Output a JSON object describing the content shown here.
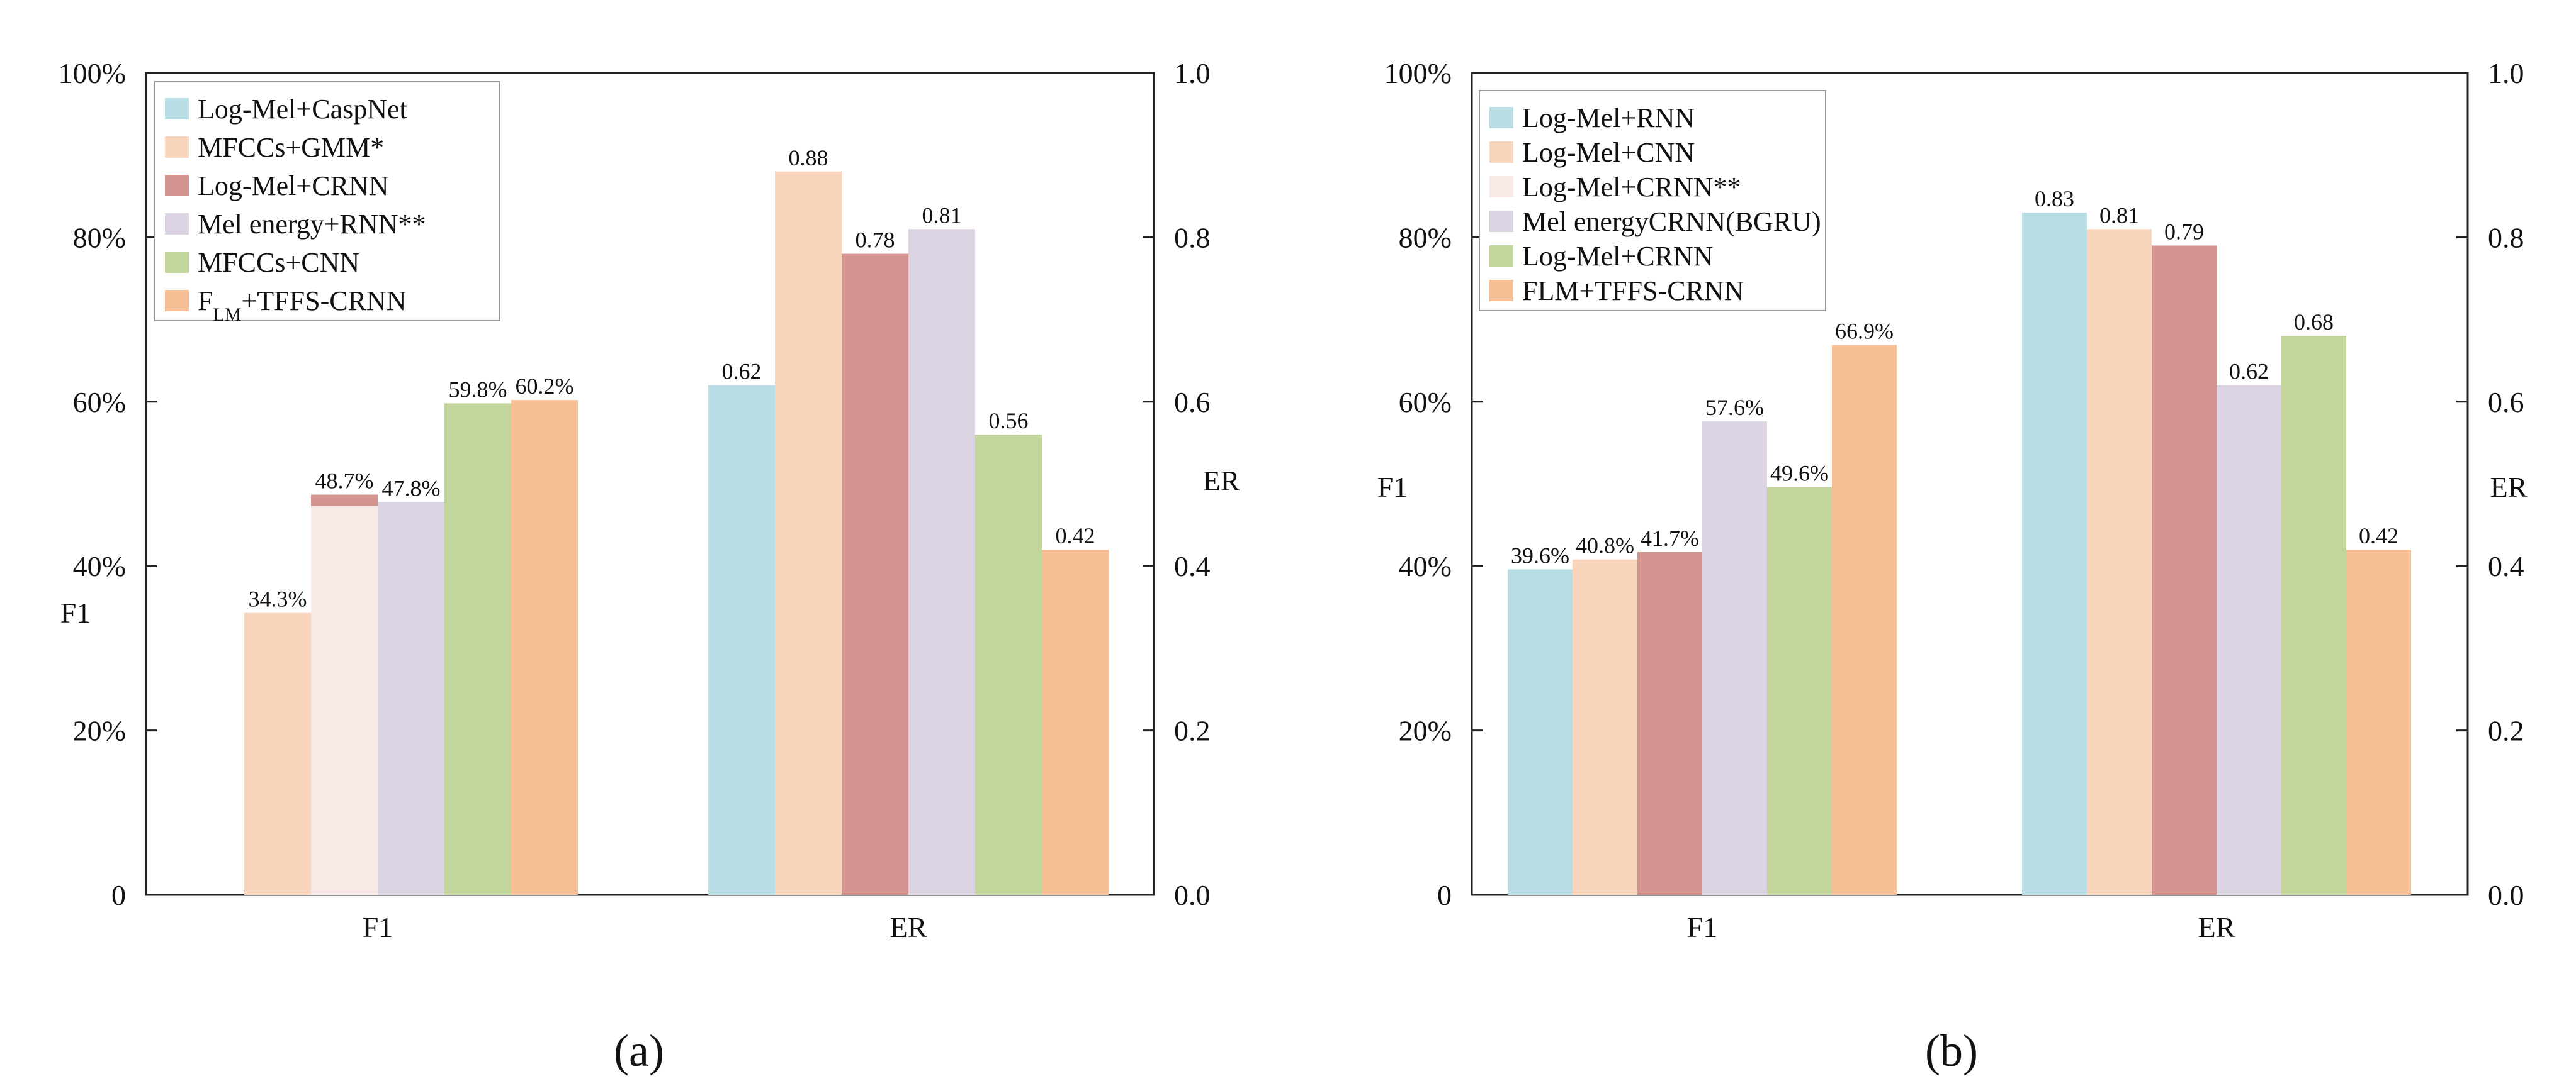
{
  "figure": {
    "panel_labels": [
      "(a)",
      "(b)"
    ]
  },
  "colors": {
    "s1": "#b8dde5",
    "s2": "#f8d5bb",
    "s3": "#d49490",
    "s4": "#dbd2e2",
    "s5": "#c2d59c",
    "s6": "#f6bf95",
    "s3b": "#f8e8e6"
  },
  "chart_data": [
    {
      "type": "bar",
      "panel": "(a)",
      "categories": [
        "F1",
        "ER"
      ],
      "left_axis": {
        "label": "F1",
        "ticks": [
          "0",
          "20%",
          "40%",
          "60%",
          "80%",
          "100%"
        ],
        "range": [
          0,
          100
        ]
      },
      "right_axis": {
        "label": "ER",
        "ticks": [
          "0.0",
          "0.2",
          "0.4",
          "0.6",
          "0.8",
          "1.0"
        ],
        "range": [
          0,
          1
        ]
      },
      "legend": {
        "placement": "top-left"
      },
      "series": [
        {
          "name": "Log-Mel+CaspNet",
          "legend": "Log-Mel+CaspNet",
          "color": "#b8dde5",
          "f1": null,
          "f1_label": "",
          "er": 0.62,
          "er_label": "0.62"
        },
        {
          "name": "MFCCs+GMM*",
          "legend": "MFCCs+GMM*",
          "color": "#f8d5bb",
          "f1": 34.3,
          "f1_label": "34.3%",
          "er": 0.88,
          "er_label": "0.88"
        },
        {
          "name": "Log-Mel+CRNN",
          "legend": "Log-Mel+CRNN",
          "color": "#d49490",
          "f1": 48.7,
          "f1_label": "48.7%",
          "f1_color": "#f8e8e6",
          "f1_cap": true,
          "er": 0.78,
          "er_label": "0.78"
        },
        {
          "name": "Mel energy+RNN**",
          "legend": "Mel energy+RNN**",
          "color": "#dbd2e2",
          "f1": 47.8,
          "f1_label": "47.8%",
          "er": 0.81,
          "er_label": "0.81"
        },
        {
          "name": "MFCCs+CNN",
          "legend": "MFCCs+CNN",
          "color": "#c2d59c",
          "f1": 59.8,
          "f1_label": "59.8%",
          "er": 0.56,
          "er_label": "0.56"
        },
        {
          "name": "FLM+TFFS-CRNN",
          "legend_main": "F",
          "legend_sub": "LM",
          "legend_rest": "+TFFS-CRNN",
          "color": "#f6bf95",
          "f1": 60.2,
          "f1_label": "60.2%",
          "er": 0.42,
          "er_label": "0.42"
        }
      ]
    },
    {
      "type": "bar",
      "panel": "(b)",
      "categories": [
        "F1",
        "ER"
      ],
      "left_axis": {
        "label": "F1",
        "ticks": [
          "0",
          "20%",
          "40%",
          "60%",
          "80%",
          "100%"
        ],
        "range": [
          0,
          100
        ]
      },
      "right_axis": {
        "label": "ER",
        "ticks": [
          "0.0",
          "0.2",
          "0.4",
          "0.6",
          "0.8",
          "1.0"
        ],
        "range": [
          0,
          1
        ]
      },
      "legend": {
        "placement": "top-left"
      },
      "series": [
        {
          "name": "Log-Mel+RNN",
          "legend": "Log-Mel+RNN",
          "color": "#b8dde5",
          "f1": 39.6,
          "f1_label": "39.6%",
          "er": 0.83,
          "er_label": "0.83"
        },
        {
          "name": "Log-Mel+CNN",
          "legend": "Log-Mel+CNN",
          "color": "#f8d5bb",
          "f1": 40.8,
          "f1_label": "40.8%",
          "er": 0.81,
          "er_label": "0.81"
        },
        {
          "name": "Log-Mel+CRNN**",
          "legend": "Log-Mel+CRNN**",
          "color": "#d49490",
          "legend_color": "#f8e8e6",
          "f1": 41.7,
          "f1_label": "41.7%",
          "er": 0.79,
          "er_label": "0.79"
        },
        {
          "name": "Mel energyCRNN(BGRU)",
          "legend": "Mel energyCRNN(BGRU)",
          "color": "#dbd2e2",
          "f1": 57.6,
          "f1_label": "57.6%",
          "er": 0.62,
          "er_label": "0.62"
        },
        {
          "name": "Log-Mel+CRNN",
          "legend": "Log-Mel+CRNN",
          "color": "#c2d59c",
          "f1": 49.6,
          "f1_label": "49.6%",
          "er": 0.68,
          "er_label": "0.68"
        },
        {
          "name": "FLM+TFFS-CRNN",
          "legend": "FLM+TFFS-CRNN",
          "color": "#f6bf95",
          "f1": 66.9,
          "f1_label": "66.9%",
          "er": 0.42,
          "er_label": "0.42"
        }
      ]
    }
  ]
}
